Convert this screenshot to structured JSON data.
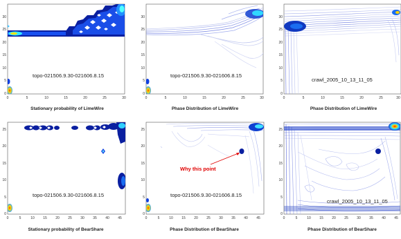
{
  "chart_data": [
    {
      "type": "heatmap",
      "title": "Stationary probability of LimeWire",
      "inner_label": "topo-021506.9.30-021606.8.15",
      "xlim": [
        0,
        30
      ],
      "ylim": [
        0,
        35
      ],
      "xticks": [
        0,
        5,
        10,
        15,
        20,
        25,
        30
      ],
      "yticks": [
        0,
        5,
        10,
        15,
        20,
        25,
        30
      ],
      "grid": false,
      "colors": {
        "low": "#c8d0f0",
        "mid": "#1040e0",
        "high": "#000080",
        "peak": "#00c0ff",
        "hot": "#ff3000"
      }
    },
    {
      "type": "heatmap",
      "title": "Phase Distribution  of LimeWire",
      "inner_label": "topo-021506.9.30-021606.8.15",
      "xlim": [
        0,
        30
      ],
      "ylim": [
        0,
        35
      ],
      "xticks": [
        0,
        5,
        10,
        15,
        20,
        25,
        30
      ],
      "yticks": [
        0,
        5,
        10,
        15,
        20,
        25,
        30
      ],
      "grid": false
    },
    {
      "type": "heatmap",
      "title": "Phase Distribution  of LimeWire",
      "inner_label": "crawl_2005_10_13_11_05",
      "xlim": [
        0,
        30
      ],
      "ylim": [
        0,
        35
      ],
      "xticks": [
        0,
        5,
        10,
        15,
        20,
        25,
        30
      ],
      "yticks": [
        0,
        5,
        10,
        15,
        20,
        25,
        30
      ],
      "grid": false
    },
    {
      "type": "heatmap",
      "title": "Stationary probability of BearShare",
      "inner_label": "topo-021506.9.30-021606.8.15",
      "xlim": [
        0,
        47
      ],
      "ylim": [
        0,
        27
      ],
      "xticks": [
        0,
        5,
        10,
        15,
        20,
        25,
        30,
        35,
        40,
        45
      ],
      "yticks": [
        0,
        5,
        10,
        15,
        20,
        25
      ],
      "grid": false
    },
    {
      "type": "heatmap",
      "title": "Phase Distribution  of BearShare",
      "inner_label": "topo-021506.9.30-021606.8.15",
      "annotation": "Why this point",
      "xlim": [
        0,
        47
      ],
      "ylim": [
        0,
        27
      ],
      "xticks": [
        0,
        5,
        10,
        15,
        20,
        25,
        30,
        35,
        40,
        45
      ],
      "yticks": [
        0,
        5,
        10,
        15,
        20,
        25
      ],
      "grid": false
    },
    {
      "type": "heatmap",
      "title": "Phase Distribution  of BearShare",
      "inner_label": "crawl_2005_10_13_11_05",
      "xlim": [
        0,
        47
      ],
      "ylim": [
        0,
        27
      ],
      "xticks": [
        0,
        5,
        10,
        15,
        20,
        25,
        30,
        35,
        40,
        45
      ],
      "yticks": [
        0,
        5,
        10,
        15,
        20,
        25
      ],
      "grid": false
    }
  ]
}
